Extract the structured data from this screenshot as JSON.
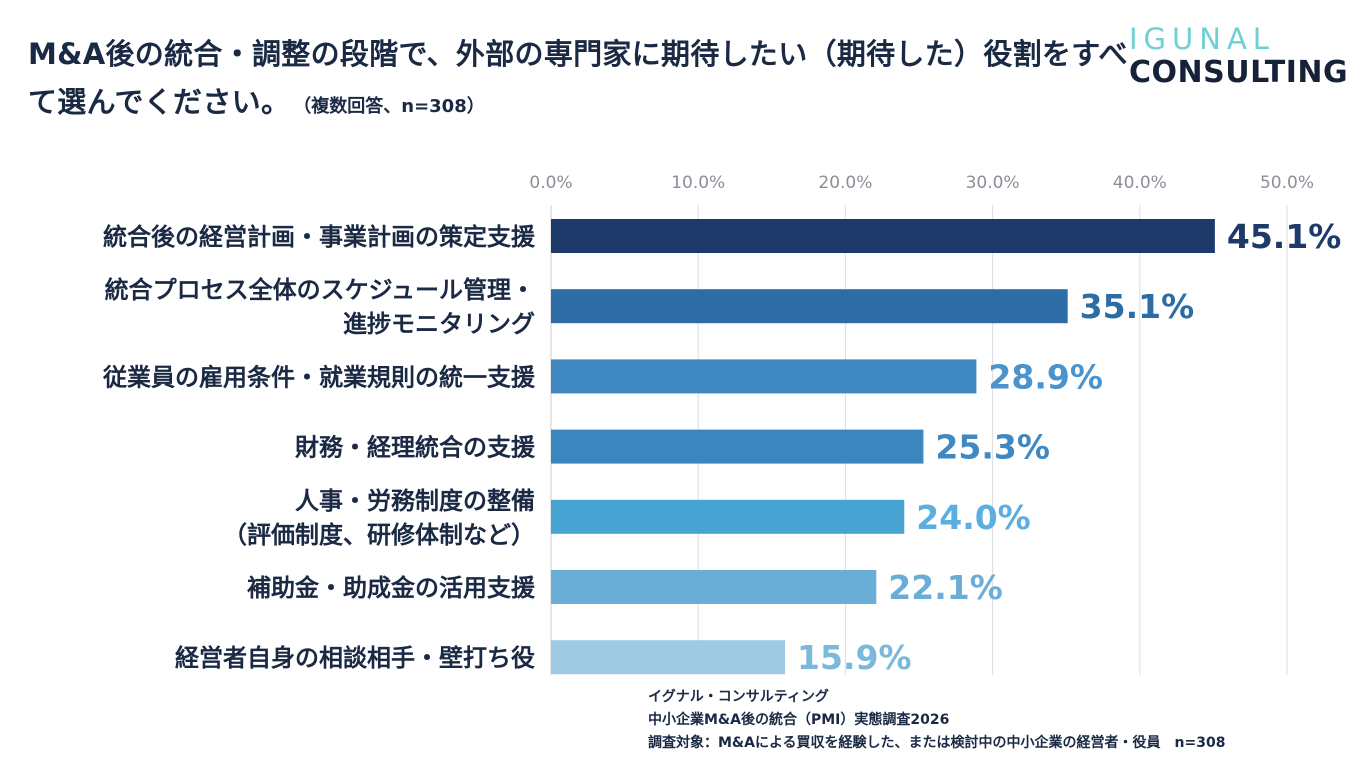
{
  "header": {
    "question": "M&A後の統合・調整の段階で、外部の専門家に期待したい（期待した）役割をすべて選んでください。",
    "note": "（複数回答、n=308）"
  },
  "logo": {
    "top": "IGUNAL",
    "bottom": "CONSULTING"
  },
  "chart_data": {
    "type": "bar",
    "orientation": "horizontal",
    "title": "M&A後の統合・調整の段階で、外部の専門家に期待したい（期待した）役割をすべて選んでください。",
    "categories": [
      [
        "統合後の経営計画・事業計画の策定支援"
      ],
      [
        "統合プロセス全体のスケジュール管理・",
        "進捗モニタリング"
      ],
      [
        "従業員の雇用条件・就業規則の統一支援"
      ],
      [
        "財務・経理統合の支援"
      ],
      [
        "人事・労務制度の整備",
        "（評価制度、研修体制など）"
      ],
      [
        "補助金・助成金の活用支援"
      ],
      [
        "経営者自身の相談相手・壁打ち役"
      ]
    ],
    "values": [
      45.1,
      35.1,
      28.9,
      25.3,
      24.0,
      22.1,
      15.9
    ],
    "value_labels": [
      "45.1%",
      "35.1%",
      "28.9%",
      "25.3%",
      "24.0%",
      "22.1%",
      "15.9%"
    ],
    "bar_colors": [
      "#1d3a6b",
      "#2e6ca6",
      "#3f88c2",
      "#3c86c0",
      "#47a3d2",
      "#6aaed8",
      "#9ecbe3"
    ],
    "label_colors": [
      "#1d3a6b",
      "#2e6ca6",
      "#4a93cc",
      "#3f88c2",
      "#5aaee0",
      "#6aaed8",
      "#7ab8dc"
    ],
    "xlim": [
      0,
      50
    ],
    "xticks": [
      0,
      10,
      20,
      30,
      40,
      50
    ],
    "xtick_labels": [
      "0.0%",
      "10.0%",
      "20.0%",
      "30.0%",
      "40.0%",
      "50.0%"
    ],
    "grid": true,
    "xlabel": "",
    "ylabel": ""
  },
  "footer": {
    "line1": "イグナル・コンサルティング",
    "line2": "中小企業M&A後の統合（PMI）実態調査2026",
    "line3": "調査対象：M&Aによる買収を経験した、または検討中の中小企業の経営者・役員　n=308"
  }
}
